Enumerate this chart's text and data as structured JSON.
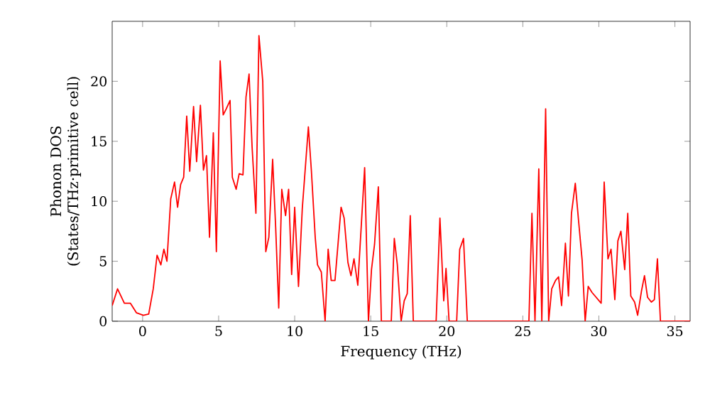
{
  "chart_data": {
    "type": "line",
    "xlabel": "Frequency (THz)",
    "ylabel": "Phonon DOS (States/THz·primitive cell)",
    "xlim": [
      -2,
      36
    ],
    "ylim": [
      0,
      25
    ],
    "xticks": [
      0,
      5,
      10,
      15,
      20,
      25,
      30,
      35
    ],
    "yticks": [
      0,
      5,
      10,
      15,
      20
    ],
    "grid": false,
    "marker": "none",
    "line_style": "solid",
    "series": [
      {
        "color": "#ff0000",
        "x": [
          -2.0,
          -1.65,
          -1.2,
          -0.8,
          -0.4,
          0.05,
          0.4,
          0.7,
          0.95,
          1.2,
          1.4,
          1.6,
          1.85,
          2.1,
          2.3,
          2.5,
          2.7,
          2.9,
          3.1,
          3.35,
          3.55,
          3.8,
          4.0,
          4.2,
          4.4,
          4.65,
          4.85,
          5.1,
          5.3,
          5.5,
          5.75,
          5.9,
          6.15,
          6.35,
          6.6,
          6.8,
          7.0,
          7.2,
          7.45,
          7.65,
          7.9,
          8.1,
          8.3,
          8.55,
          8.75,
          8.95,
          9.15,
          9.4,
          9.6,
          9.8,
          10.0,
          10.25,
          10.5,
          10.9,
          11.1,
          11.35,
          11.5,
          11.75,
          12.0,
          12.2,
          12.4,
          12.65,
          13.05,
          13.25,
          13.5,
          13.7,
          13.9,
          14.15,
          14.6,
          14.85,
          15.05,
          15.25,
          15.5,
          15.7,
          16.35,
          16.55,
          16.75,
          17.0,
          17.2,
          17.4,
          17.6,
          17.8,
          19.3,
          19.55,
          19.8,
          19.95,
          20.15,
          20.65,
          20.85,
          21.1,
          21.35,
          25.4,
          25.6,
          25.8,
          26.05,
          26.25,
          26.5,
          26.7,
          26.9,
          27.15,
          27.35,
          27.55,
          27.8,
          28.0,
          28.2,
          28.45,
          28.65,
          28.9,
          29.1,
          29.3,
          29.55,
          29.75,
          30.15,
          30.35,
          30.6,
          30.8,
          31.05,
          31.25,
          31.45,
          31.7,
          31.9,
          32.1,
          32.35,
          32.55,
          32.8,
          33.0,
          33.2,
          33.45,
          33.65,
          33.85,
          34.05,
          36.0
        ],
        "values": [
          1.3,
          2.7,
          1.5,
          1.5,
          0.7,
          0.5,
          0.6,
          2.7,
          5.5,
          4.7,
          6.0,
          5.0,
          10.2,
          11.6,
          9.5,
          11.4,
          12.0,
          17.1,
          12.5,
          17.9,
          13.3,
          18.0,
          12.6,
          13.8,
          7.0,
          15.7,
          5.8,
          21.7,
          17.2,
          17.7,
          18.4,
          12.0,
          11.0,
          12.3,
          12.2,
          18.7,
          20.6,
          14.5,
          9.0,
          23.8,
          20.0,
          5.8,
          7.0,
          13.5,
          7.8,
          1.1,
          11.0,
          8.8,
          11.0,
          3.9,
          9.5,
          2.9,
          9.4,
          16.2,
          12.5,
          7.0,
          4.7,
          4.1,
          0,
          6.0,
          3.4,
          3.4,
          9.5,
          8.6,
          4.9,
          3.8,
          5.2,
          3.0,
          12.8,
          0,
          4.3,
          6.4,
          11.2,
          0,
          0,
          6.9,
          4.7,
          0,
          1.7,
          2.3,
          8.8,
          0,
          0,
          8.6,
          1.7,
          4.4,
          0,
          0,
          6.0,
          6.9,
          0,
          0,
          9.0,
          0,
          12.7,
          0,
          17.7,
          0,
          2.7,
          3.4,
          3.7,
          1.3,
          6.5,
          2.1,
          9.0,
          11.5,
          8.6,
          5.1,
          0,
          2.9,
          2.4,
          2.1,
          1.5,
          11.6,
          5.2,
          6.0,
          1.8,
          6.7,
          7.5,
          4.3,
          9.0,
          2.1,
          1.6,
          0.5,
          2.5,
          3.8,
          2.0,
          1.6,
          1.8,
          5.2,
          0,
          0
        ]
      }
    ]
  }
}
